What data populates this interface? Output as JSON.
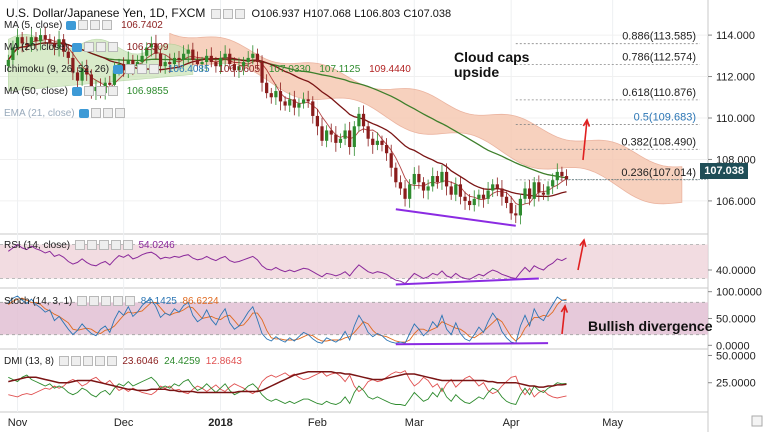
{
  "header": {
    "symbol": "U.S. Dollar/Japanese Yen, 1D, FXCM",
    "ohlc": {
      "o": "O106.937",
      "h": "H107.068",
      "l": "L106.803",
      "c": "C107.038"
    }
  },
  "indicator_labels": [
    {
      "name": "ma5",
      "label": "MA (5, close)",
      "values": [
        "106.7402"
      ],
      "colors": [
        "#8a1c1c"
      ]
    },
    {
      "name": "ma20",
      "label": "MA (20, close)",
      "values": [
        "106.2309"
      ],
      "colors": [
        "#8a1c1c"
      ]
    },
    {
      "name": "ichimoku",
      "label": "Ichimoku (9, 26, 52, 26)",
      "values": [
        "106.4085",
        "106.0605",
        "107.0330",
        "107.1125",
        "109.4440"
      ],
      "colors": [
        "#2c76b5",
        "#8a1c1c",
        "#2e8b2e",
        "#2e8b2e",
        "#b22222"
      ]
    },
    {
      "name": "ma50",
      "label": "MA (50, close)",
      "values": [
        "106.9855"
      ],
      "colors": [
        "#2e8b2e"
      ]
    },
    {
      "name": "ema21",
      "label": "EMA (21, close)",
      "values": [],
      "colors": []
    }
  ],
  "rsi_header": {
    "label": "RSI (14, close)",
    "value": "54.0246",
    "color": "#8b2a9b"
  },
  "stoch_header": {
    "label": "Stoch (14, 3, 1)",
    "values": [
      "84.1425",
      "86.6224"
    ],
    "colors": [
      "#2c76b5",
      "#e06a20"
    ]
  },
  "dmi_header": {
    "label": "DMI (13, 8)",
    "values": [
      "23.6046",
      "24.4259",
      "12.8643"
    ],
    "colors": [
      "#8a1c1c",
      "#2e8b2e",
      "#e05050"
    ]
  },
  "annotations": {
    "cloud": "Cloud caps\nupside",
    "divergence": "Bullish divergence"
  },
  "last_price": "107.038",
  "colors": {
    "price_scale_tag": "#1f4e57",
    "cloud": "#f6c9b3",
    "cloud_green": "#c9e3b5",
    "rsi_band": "#efd3d9",
    "stoch_band": "#e2c0d4",
    "divergence_line": "#8b2be2",
    "arrow": "#e02020",
    "candle_up": "#2e8b2e",
    "candle_down": "#8a1c1c"
  },
  "chart_data": [
    {
      "type": "candlestick",
      "title": "U.S. Dollar/Japanese Yen, 1D, FXCM",
      "x_tick_labels": [
        "Nov",
        "Dec",
        "2018",
        "Feb",
        "Mar",
        "Apr",
        "May"
      ],
      "y_tick_labels": [
        "114.000",
        "112.000",
        "110.000",
        "108.000",
        "106.000"
      ],
      "ylim": [
        104.5,
        115.5
      ],
      "fibonacci": [
        {
          "ratio": "0.886",
          "value": 113.585
        },
        {
          "ratio": "0.786",
          "value": 112.574
        },
        {
          "ratio": "0.618",
          "value": 110.876
        },
        {
          "ratio": "0.5",
          "value": 109.683
        },
        {
          "ratio": "0.382",
          "value": 108.49
        },
        {
          "ratio": "0.236",
          "value": 107.014
        }
      ],
      "closes": [
        112.8,
        113.4,
        113.9,
        113.6,
        113.5,
        113.9,
        113.7,
        114.0,
        113.8,
        113.6,
        113.4,
        113.8,
        113.2,
        112.9,
        112.2,
        111.8,
        112.4,
        112.1,
        111.3,
        111.5,
        111.2,
        111.7,
        111.6,
        112.3,
        112.6,
        112.3,
        112.8,
        112.5,
        112.7,
        113.0,
        113.4,
        113.6,
        113.1,
        112.5,
        112.7,
        112.6,
        112.9,
        112.8,
        113.1,
        113.3,
        112.8,
        112.6,
        112.7,
        113.0,
        112.7,
        112.5,
        112.9,
        113.1,
        112.6,
        112.3,
        112.5,
        112.7,
        112.9,
        113.1,
        112.7,
        111.7,
        111.2,
        111.0,
        111.3,
        110.8,
        110.6,
        110.9,
        110.5,
        110.7,
        110.9,
        110.8,
        110.1,
        109.6,
        108.9,
        109.4,
        109.2,
        108.8,
        109.0,
        109.4,
        108.6,
        109.6,
        110.2,
        109.6,
        109.0,
        108.7,
        108.9,
        108.7,
        108.3,
        107.6,
        106.9,
        106.6,
        106.1,
        106.8,
        107.3,
        106.9,
        106.5,
        106.7,
        107.2,
        106.9,
        107.4,
        106.7,
        106.3,
        106.8,
        106.2,
        106.0,
        105.8,
        106.1,
        106.3,
        106.1,
        106.5,
        106.8,
        106.6,
        106.2,
        105.9,
        105.4,
        105.3,
        106.1,
        106.6,
        106.1,
        106.9,
        106.4,
        106.3,
        106.7,
        107.0,
        107.4,
        107.2,
        107.04
      ]
    },
    {
      "type": "line",
      "title": "RSI (14, close)",
      "y_tick_labels": [
        "40.0000"
      ],
      "ylim": [
        20,
        80
      ],
      "values": [
        62,
        66,
        70,
        66,
        64,
        68,
        65,
        63,
        60,
        62,
        56,
        58,
        55,
        50,
        47,
        49,
        53,
        49,
        46,
        45,
        48,
        50,
        46,
        52,
        57,
        55,
        58,
        53,
        55,
        58,
        60,
        61,
        58,
        53,
        55,
        54,
        56,
        55,
        57,
        58,
        54,
        52,
        53,
        56,
        53,
        51,
        54,
        56,
        51,
        49,
        50,
        52,
        54,
        56,
        52,
        45,
        41,
        40,
        43,
        40,
        38,
        40,
        38,
        40,
        42,
        41,
        38,
        35,
        32,
        36,
        35,
        33,
        35,
        38,
        33,
        40,
        46,
        42,
        38,
        36,
        38,
        37,
        35,
        31,
        28,
        27,
        24,
        30,
        36,
        33,
        30,
        32,
        36,
        34,
        39,
        33,
        31,
        36,
        32,
        30,
        29,
        32,
        35,
        33,
        37,
        40,
        38,
        35,
        33,
        31,
        30,
        37,
        43,
        38,
        45,
        42,
        40,
        45,
        48,
        53,
        51,
        54
      ]
    },
    {
      "type": "line",
      "title": "Stoch (14, 3, 1)",
      "y_tick_labels": [
        "100.0000",
        "50.0000",
        "0.0000"
      ],
      "ylim": [
        -5,
        105
      ],
      "series": [
        {
          "name": "%K",
          "values": [
            80,
            88,
            92,
            84,
            78,
            86,
            76,
            70,
            62,
            66,
            46,
            54,
            42,
            30,
            20,
            28,
            40,
            30,
            22,
            18,
            30,
            36,
            24,
            48,
            64,
            56,
            72,
            54,
            62,
            74,
            82,
            86,
            72,
            52,
            60,
            56,
            68,
            62,
            74,
            80,
            56,
            44,
            50,
            66,
            48,
            38,
            56,
            68,
            42,
            30,
            36,
            48,
            62,
            72,
            48,
            22,
            12,
            8,
            16,
            10,
            6,
            14,
            8,
            16,
            24,
            20,
            12,
            6,
            4,
            14,
            10,
            6,
            12,
            26,
            10,
            36,
            56,
            42,
            24,
            16,
            22,
            18,
            10,
            6,
            4,
            6,
            4,
            22,
            40,
            30,
            18,
            26,
            44,
            34,
            56,
            30,
            20,
            42,
            22,
            12,
            8,
            20,
            34,
            24,
            44,
            60,
            48,
            26,
            14,
            6,
            4,
            36,
            56,
            36,
            68,
            52,
            46,
            62,
            76,
            90,
            84,
            84
          ]
        },
        {
          "name": "%D",
          "values": [
            76,
            82,
            86,
            88,
            84,
            80,
            80,
            76,
            68,
            64,
            58,
            54,
            48,
            42,
            30,
            28,
            30,
            32,
            30,
            24,
            22,
            28,
            30,
            36,
            46,
            56,
            62,
            60,
            62,
            64,
            72,
            80,
            80,
            70,
            60,
            56,
            60,
            62,
            66,
            72,
            70,
            60,
            50,
            52,
            54,
            50,
            48,
            54,
            56,
            46,
            36,
            38,
            48,
            60,
            60,
            48,
            28,
            14,
            12,
            12,
            10,
            10,
            10,
            12,
            16,
            20,
            18,
            12,
            8,
            8,
            10,
            10,
            10,
            14,
            16,
            24,
            34,
            44,
            40,
            28,
            20,
            18,
            16,
            12,
            8,
            6,
            6,
            10,
            22,
            30,
            30,
            26,
            30,
            34,
            44,
            40,
            36,
            32,
            30,
            24,
            16,
            14,
            20,
            26,
            34,
            42,
            50,
            44,
            30,
            16,
            8,
            16,
            32,
            42,
            52,
            52,
            56,
            54,
            62,
            76,
            84,
            86
          ]
        }
      ]
    },
    {
      "type": "line",
      "title": "DMI (13, 8)",
      "y_tick_labels": [
        "50.0000",
        "25.0000"
      ],
      "ylim": [
        0,
        55
      ],
      "series": [
        {
          "name": "ADX",
          "values": [
            26,
            27,
            28,
            29,
            30,
            30,
            30,
            29,
            28,
            27,
            26,
            25,
            25,
            25,
            26,
            27,
            27,
            27,
            27,
            26,
            25,
            24,
            23,
            22,
            21,
            20,
            19,
            19,
            18,
            18,
            18,
            19,
            19,
            19,
            19,
            18,
            18,
            17,
            17,
            17,
            17,
            16,
            16,
            16,
            16,
            16,
            16,
            16,
            16,
            16,
            17,
            17,
            17,
            17,
            17,
            18,
            20,
            22,
            24,
            26,
            28,
            30,
            32,
            33,
            34,
            35,
            35,
            35,
            35,
            35,
            35,
            34,
            34,
            33,
            33,
            32,
            31,
            30,
            29,
            28,
            28,
            28,
            29,
            30,
            31,
            32,
            33,
            33,
            33,
            32,
            31,
            30,
            29,
            28,
            27,
            27,
            27,
            27,
            27,
            27,
            27,
            27,
            27,
            27,
            26,
            26,
            25,
            25,
            25,
            25,
            25,
            24,
            23,
            22,
            22,
            21,
            21,
            22,
            22,
            23,
            23,
            23.6
          ]
        },
        {
          "name": "+DI",
          "values": [
            30,
            28,
            26,
            30,
            32,
            28,
            26,
            24,
            22,
            24,
            20,
            22,
            20,
            16,
            14,
            16,
            20,
            18,
            14,
            12,
            16,
            18,
            14,
            20,
            24,
            22,
            26,
            22,
            24,
            26,
            28,
            30,
            26,
            20,
            22,
            20,
            24,
            22,
            26,
            28,
            22,
            18,
            20,
            24,
            20,
            16,
            20,
            24,
            18,
            14,
            16,
            18,
            22,
            24,
            20,
            14,
            10,
            8,
            10,
            8,
            6,
            8,
            6,
            8,
            10,
            10,
            8,
            6,
            5,
            8,
            6,
            5,
            7,
            12,
            6,
            16,
            22,
            18,
            12,
            10,
            12,
            10,
            8,
            6,
            5,
            5,
            4,
            10,
            16,
            12,
            8,
            10,
            16,
            12,
            20,
            12,
            8,
            14,
            10,
            7,
            6,
            9,
            12,
            10,
            16,
            20,
            18,
            12,
            8,
            6,
            5,
            14,
            20,
            14,
            22,
            18,
            16,
            20,
            22,
            25,
            24,
            24.4
          ]
        },
        {
          "name": "-DI",
          "values": [
            14,
            13,
            12,
            14,
            15,
            14,
            16,
            18,
            20,
            19,
            22,
            20,
            22,
            26,
            28,
            26,
            22,
            24,
            28,
            30,
            26,
            24,
            27,
            22,
            18,
            20,
            17,
            20,
            18,
            16,
            15,
            14,
            17,
            22,
            20,
            22,
            18,
            19,
            16,
            15,
            19,
            22,
            20,
            17,
            20,
            23,
            19,
            17,
            21,
            24,
            22,
            20,
            17,
            15,
            18,
            26,
            30,
            32,
            30,
            32,
            34,
            31,
            33,
            30,
            28,
            29,
            31,
            33,
            35,
            31,
            33,
            34,
            31,
            26,
            32,
            22,
            17,
            20,
            26,
            28,
            26,
            27,
            30,
            33,
            35,
            34,
            36,
            28,
            22,
            25,
            30,
            27,
            21,
            24,
            17,
            24,
            28,
            21,
            25,
            29,
            31,
            27,
            22,
            25,
            18,
            15,
            17,
            22,
            26,
            30,
            31,
            20,
            14,
            20,
            12,
            16,
            18,
            14,
            12,
            11,
            12,
            12.9
          ]
        }
      ]
    }
  ]
}
